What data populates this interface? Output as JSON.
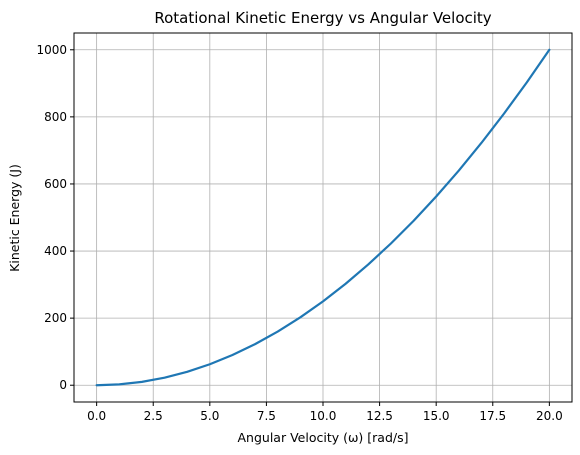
{
  "chart_data": {
    "type": "line",
    "title": "Rotational Kinetic Energy vs Angular Velocity",
    "xlabel": "Angular Velocity (ω) [rad/s]",
    "ylabel": "Kinetic Energy (J)",
    "xlim": [
      -1.0,
      21.0
    ],
    "ylim": [
      -50,
      1050
    ],
    "xticks": [
      0.0,
      2.5,
      5.0,
      7.5,
      10.0,
      12.5,
      15.0,
      17.5,
      20.0
    ],
    "xtick_labels": [
      "0.0",
      "2.5",
      "5.0",
      "7.5",
      "10.0",
      "12.5",
      "15.0",
      "17.5",
      "20.0"
    ],
    "yticks": [
      0,
      200,
      400,
      600,
      800,
      1000
    ],
    "ytick_labels": [
      "0",
      "200",
      "400",
      "600",
      "800",
      "1000"
    ],
    "grid": true,
    "series": [
      {
        "color": "#1f77b4",
        "x": [
          0,
          1,
          2,
          3,
          4,
          5,
          6,
          7,
          8,
          9,
          10,
          11,
          12,
          13,
          14,
          15,
          16,
          17,
          18,
          19,
          20
        ],
        "y": [
          0,
          2.5,
          10,
          22.5,
          40,
          62.5,
          90,
          122.5,
          160,
          202.5,
          250,
          302.5,
          360,
          422.5,
          490,
          562.5,
          640,
          722.5,
          810,
          902.5,
          1000
        ]
      }
    ]
  }
}
